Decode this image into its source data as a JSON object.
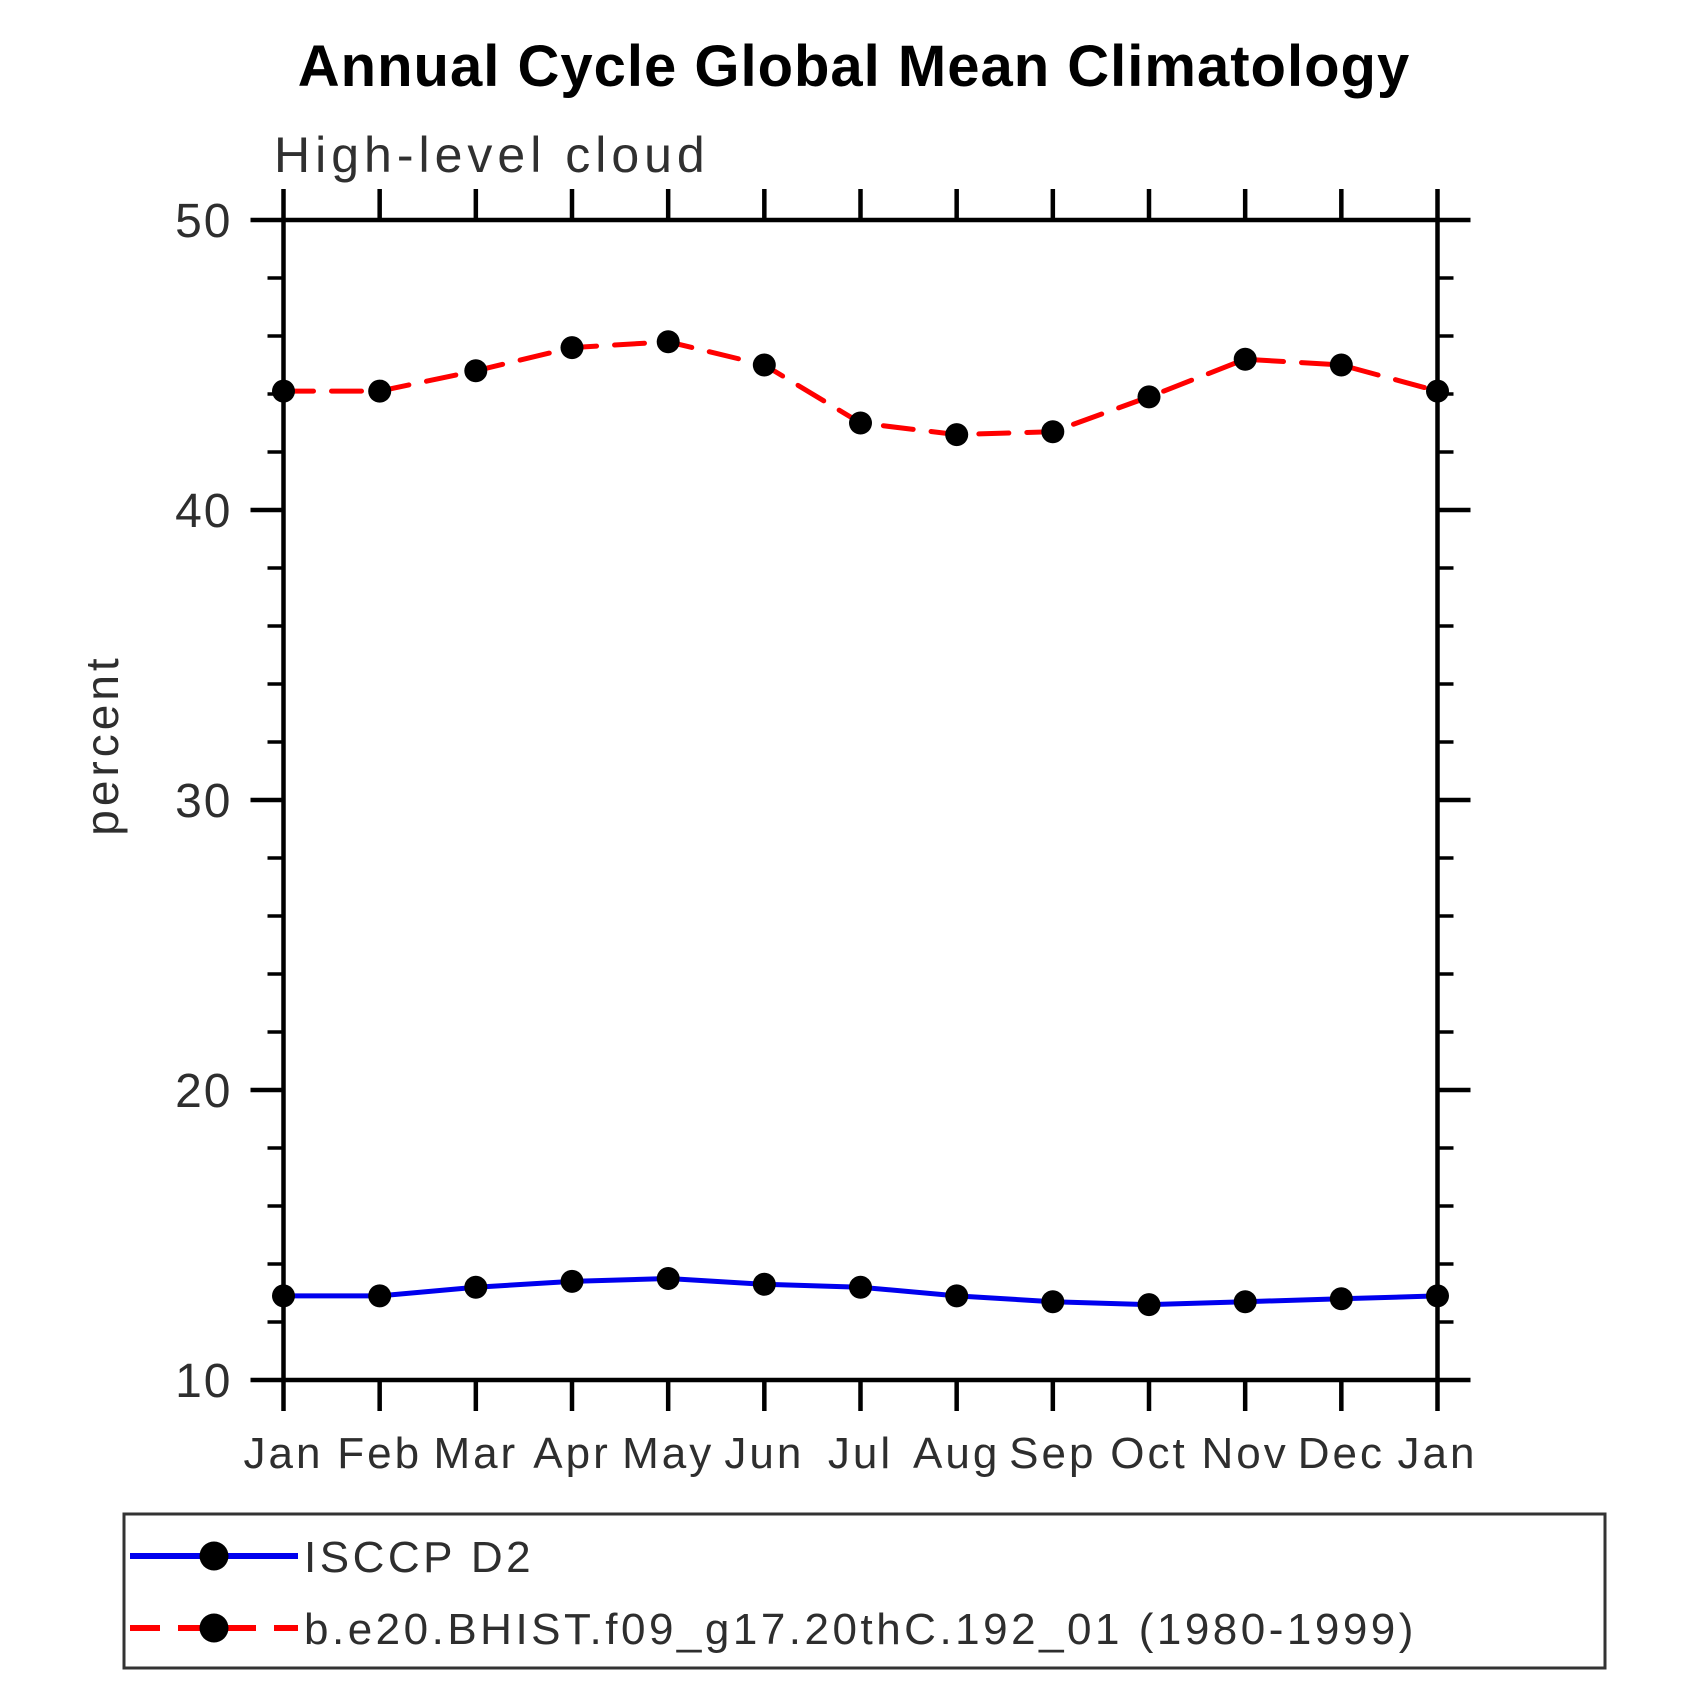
{
  "chart_data": {
    "type": "line",
    "title": "Annual Cycle Global Mean Climatology",
    "subtitle": "High-level cloud",
    "ylabel": "percent",
    "xlabel": "",
    "x_categories": [
      "Jan",
      "Feb",
      "Mar",
      "Apr",
      "May",
      "Jun",
      "Jul",
      "Aug",
      "Sep",
      "Oct",
      "Nov",
      "Dec",
      "Jan"
    ],
    "ylim": [
      10,
      50
    ],
    "y_major_ticks": [
      10,
      20,
      30,
      40,
      50
    ],
    "y_minor_step": 2,
    "grid": false,
    "legend_position": "bottom-box",
    "series": [
      {
        "name": "ISCCP D2",
        "color": "#0000ee",
        "line_style": "solid",
        "marker": "circle",
        "marker_color": "#000000",
        "values": [
          12.9,
          12.9,
          13.2,
          13.4,
          13.5,
          13.3,
          13.2,
          12.9,
          12.7,
          12.6,
          12.7,
          12.8,
          12.9
        ]
      },
      {
        "name": "b.e20.BHIST.f09_g17.20thC.192_01 (1980-1999)",
        "color": "#ff0000",
        "line_style": "dashed",
        "marker": "circle",
        "marker_color": "#000000",
        "values": [
          44.1,
          44.1,
          44.8,
          45.6,
          45.8,
          45.0,
          43.0,
          42.6,
          42.7,
          43.9,
          45.2,
          45.0,
          44.1
        ]
      }
    ]
  }
}
